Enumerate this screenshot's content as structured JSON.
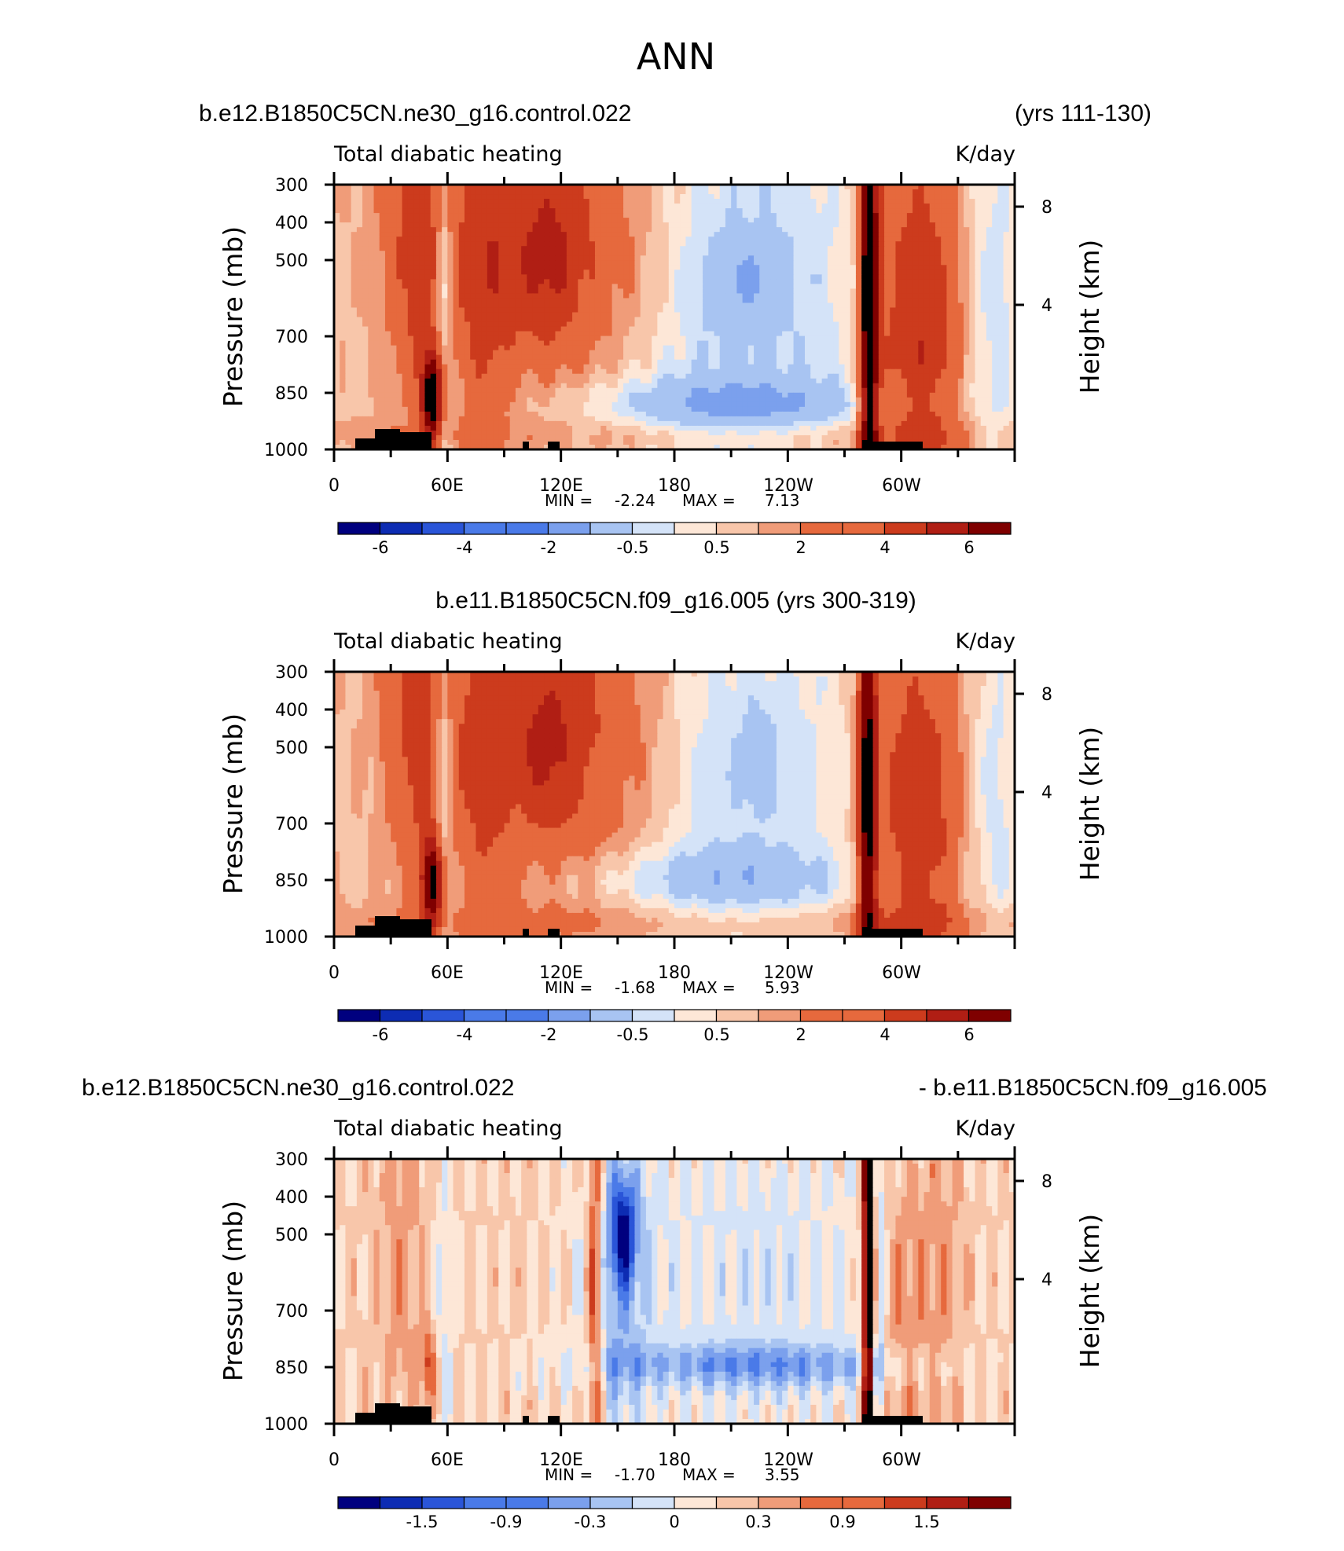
{
  "main_title": "ANN",
  "colors": {
    "neg": [
      "#00007f",
      "#0d2cb3",
      "#2a55d8",
      "#4a7ae8",
      "#7ba0ed",
      "#a8c4f2",
      "#d4e3f8"
    ],
    "pos": [
      "#fde7d7",
      "#f8c6aa",
      "#f09c79",
      "#e6693d",
      "#cc3b1d",
      "#b01e14",
      "#7f0000"
    ],
    "land": "#000000"
  },
  "chart_data": [
    {
      "type": "heatmap",
      "id": "panel1",
      "left_title": "b.e12.B1850C5CN.ne30_g16.control.022",
      "right_title": "(yrs 111-130)",
      "variable_label": "Total diabatic heating",
      "units": "K/day",
      "ylabel": "Pressure (mb)",
      "ylabel_right": "Height (km)",
      "pressure_ticks": [
        "300",
        "400",
        "500",
        "700",
        "850",
        "1000"
      ],
      "height_ticks": [
        "8",
        "4"
      ],
      "lon_ticks": [
        "0",
        "60E",
        "120E",
        "180",
        "120W",
        "60W"
      ],
      "min_label": "MIN =",
      "min_value": "-2.24",
      "max_label": "MAX =",
      "max_value": "7.13",
      "colorbar_labels": [
        "-6",
        "-4",
        "-2",
        "-0.5",
        "0.5",
        "2",
        "4",
        "6"
      ],
      "levels": [
        -6,
        -5,
        -4,
        -3,
        -2,
        -1,
        -0.5,
        0,
        0.5,
        1,
        2,
        3,
        4,
        5,
        6
      ]
    },
    {
      "type": "heatmap",
      "id": "panel2",
      "center_title": "b.e11.B1850C5CN.f09_g16.005 (yrs 300-319)",
      "variable_label": "Total diabatic heating",
      "units": "K/day",
      "ylabel": "Pressure (mb)",
      "ylabel_right": "Height (km)",
      "pressure_ticks": [
        "300",
        "400",
        "500",
        "700",
        "850",
        "1000"
      ],
      "height_ticks": [
        "8",
        "4"
      ],
      "lon_ticks": [
        "0",
        "60E",
        "120E",
        "180",
        "120W",
        "60W"
      ],
      "min_label": "MIN =",
      "min_value": "-1.68",
      "max_label": "MAX =",
      "max_value": "5.93",
      "colorbar_labels": [
        "-6",
        "-4",
        "-2",
        "-0.5",
        "0.5",
        "2",
        "4",
        "6"
      ],
      "levels": [
        -6,
        -5,
        -4,
        -3,
        -2,
        -1,
        -0.5,
        0,
        0.5,
        1,
        2,
        3,
        4,
        5,
        6
      ]
    },
    {
      "type": "heatmap",
      "id": "panel3",
      "left_title": "b.e12.B1850C5CN.ne30_g16.control.022",
      "right_title": "- b.e11.B1850C5CN.f09_g16.005",
      "variable_label": "Total diabatic heating",
      "units": "K/day",
      "ylabel": "Pressure (mb)",
      "ylabel_right": "Height (km)",
      "pressure_ticks": [
        "300",
        "400",
        "500",
        "700",
        "850",
        "1000"
      ],
      "height_ticks": [
        "8",
        "4"
      ],
      "lon_ticks": [
        "0",
        "60E",
        "120E",
        "180",
        "120W",
        "60W"
      ],
      "min_label": "MIN =",
      "min_value": "-1.70",
      "max_label": "MAX =",
      "max_value": "3.55",
      "colorbar_labels": [
        "-1.5",
        "-0.9",
        "-0.3",
        "0",
        "0.3",
        "0.9",
        "1.5"
      ],
      "levels": [
        -2.1,
        -1.8,
        -1.5,
        -1.2,
        -0.9,
        -0.6,
        -0.3,
        0,
        0.3,
        0.6,
        0.9,
        1.2,
        1.5,
        1.8,
        2.1
      ]
    }
  ]
}
